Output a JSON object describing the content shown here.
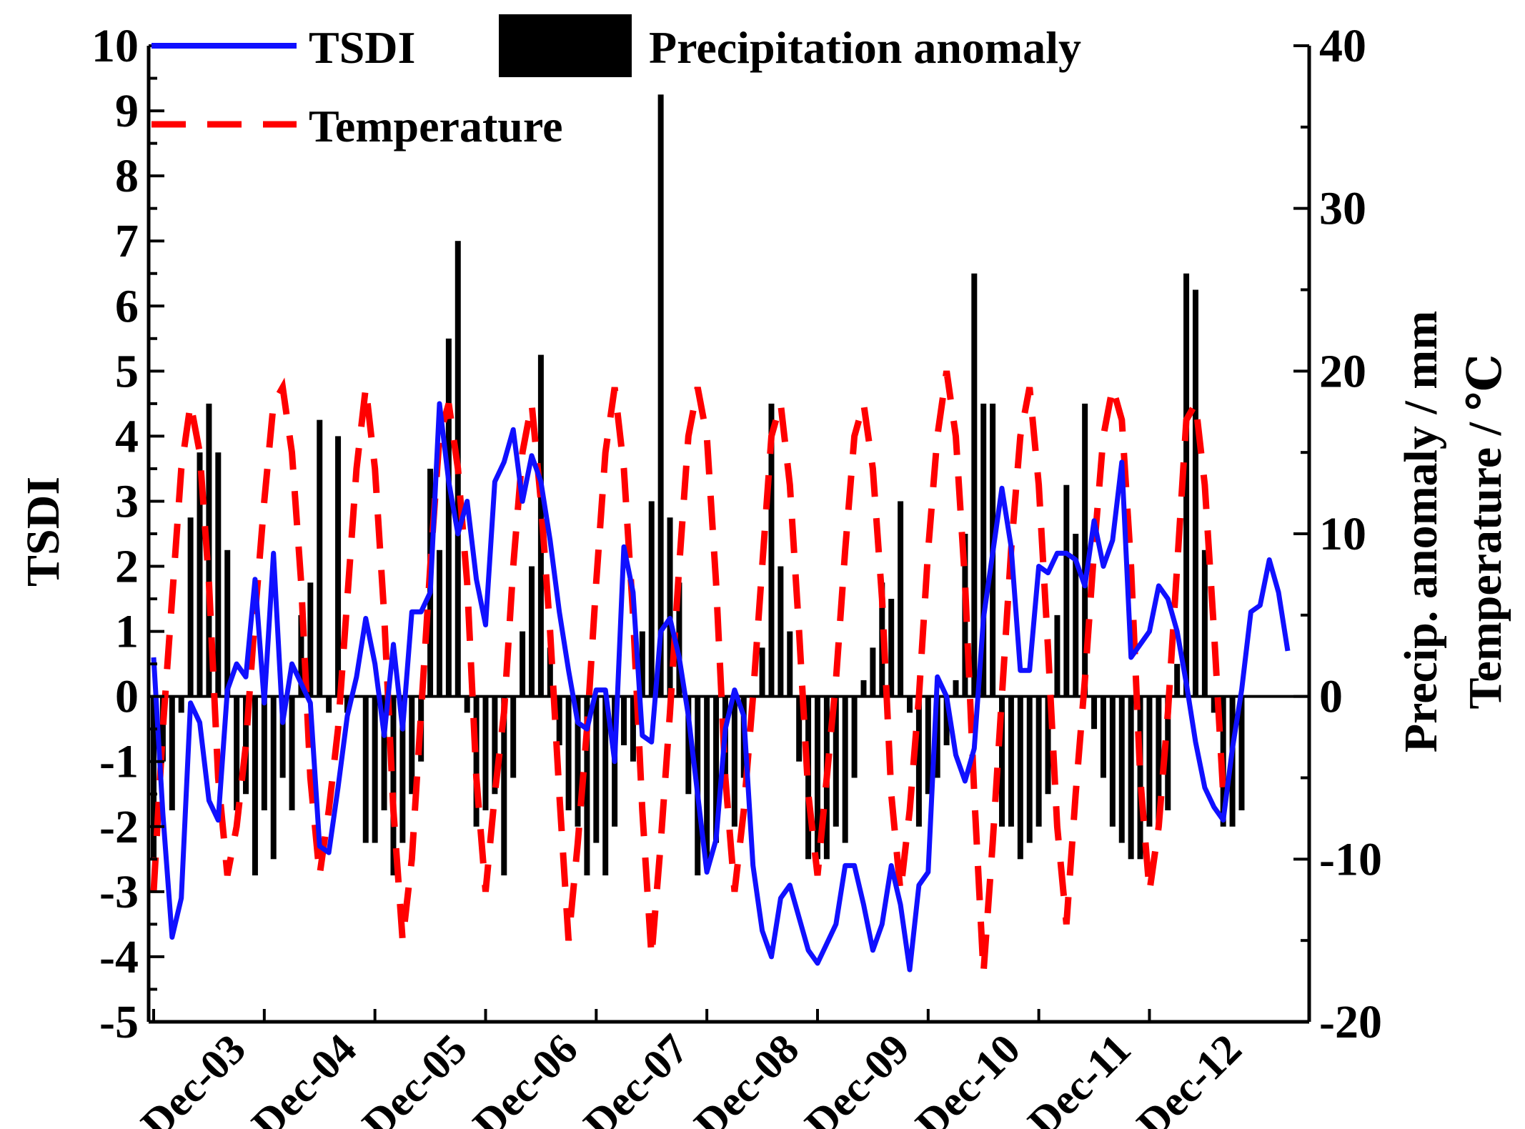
{
  "chart_data": {
    "type": "bar+line",
    "title": "",
    "xlabel": "",
    "ylabel_left": "TSDI",
    "ylabel_right_1": "Precip. anomaly / mm",
    "ylabel_right_2": "Temperature / ℃",
    "ylim_left": [
      -5,
      10
    ],
    "ylim_right": [
      -20,
      40
    ],
    "yticks_left": [
      "10",
      "9",
      "8",
      "7",
      "6",
      "5",
      "4",
      "3",
      "2",
      "1",
      "0",
      "-1",
      "-2",
      "-3",
      "-4",
      "-5"
    ],
    "yticks_right": [
      "40",
      "30",
      "20",
      "10",
      "0",
      "-10",
      "-20"
    ],
    "x_tick_labels": [
      "Dec-03",
      "Dec-04",
      "Dec-05",
      "Dec-06",
      "Dec-07",
      "Dec-08",
      "Dec-09",
      "Dec-10",
      "Dec-11",
      "Dec-12"
    ],
    "legend": {
      "tsdi": "TSDI",
      "precip": "Precipitation anomaly",
      "temperature": "Temperature"
    },
    "colors": {
      "tsdi": "#1010ff",
      "temperature": "#ff0000",
      "precip": "#000000"
    },
    "months_start": "Dec-03",
    "series": [
      {
        "name": "TSDI",
        "axis": "left",
        "values": [
          0.6,
          -1.8,
          -3.7,
          -3.1,
          -0.1,
          -0.4,
          -1.6,
          -1.9,
          0.1,
          0.5,
          0.3,
          1.8,
          -0.1,
          2.2,
          -0.4,
          0.5,
          0.2,
          -0.1,
          -2.3,
          -2.4,
          -1.4,
          -0.3,
          0.3,
          1.2,
          0.5,
          -0.6,
          0.8,
          -0.5,
          1.3,
          1.3,
          1.6,
          4.5,
          3.3,
          2.5,
          3.0,
          1.8,
          1.1,
          3.3,
          3.6,
          4.1,
          3.0,
          3.7,
          3.3,
          2.4,
          1.3,
          0.4,
          -0.4,
          -0.5,
          0.1,
          0.1,
          -1.0,
          2.3,
          1.6,
          -0.6,
          -0.7,
          1.0,
          1.2,
          0.6,
          -0.3,
          -1.5,
          -2.7,
          -2.2,
          -0.5,
          0.1,
          -0.3,
          -2.6,
          -3.6,
          -4.0,
          -3.1,
          -2.9,
          -3.4,
          -3.9,
          -4.1,
          -3.8,
          -3.5,
          -2.6,
          -2.6,
          -3.2,
          -3.9,
          -3.5,
          -2.6,
          -3.2,
          -4.2,
          -2.9,
          -2.7,
          0.3,
          0.0,
          -0.9,
          -1.3,
          -0.8,
          1.2,
          2.2,
          3.2,
          2.3,
          0.4,
          0.4,
          2.0,
          1.9,
          2.2,
          2.2,
          2.1,
          1.7,
          2.7,
          2.0,
          2.4,
          3.6,
          0.6,
          0.8,
          1.0,
          1.7,
          1.5,
          1.0,
          0.2,
          -0.7,
          -1.4,
          -1.7,
          -1.9,
          -0.8,
          0.1,
          1.3,
          1.4,
          2.1,
          1.6,
          0.7
        ]
      },
      {
        "name": "Precipitation anomaly",
        "axis": "right",
        "values": [
          -10,
          -4,
          -7,
          -1,
          11,
          15,
          18,
          15,
          9,
          -7,
          -6,
          -11,
          -7,
          -10,
          -5,
          -7,
          5,
          7,
          17,
          -1,
          16,
          -1,
          0,
          -9,
          -9,
          -7,
          -11,
          -9,
          -6,
          -4,
          14,
          9,
          22,
          28,
          -1,
          -8,
          -7,
          -6,
          -11,
          -5,
          4,
          8,
          21,
          3,
          -3,
          -7,
          -8,
          -11,
          -9,
          -11,
          -8,
          -3,
          -4,
          4,
          12,
          37,
          11,
          7,
          -6,
          -11,
          -10,
          -9,
          -5,
          -8,
          -5,
          0,
          3,
          18,
          8,
          4,
          -4,
          -10,
          -10,
          -10,
          -8,
          -9,
          -5,
          1,
          3,
          7,
          6,
          12,
          -1,
          -8,
          -6,
          -5,
          -3,
          1,
          10,
          26,
          18,
          18,
          -8,
          -8,
          -10,
          -9,
          -8,
          -6,
          5,
          13,
          10,
          18,
          -2,
          -5,
          -8,
          -9,
          -10,
          -10,
          -8,
          -8,
          -7,
          2,
          26,
          25,
          9,
          -1,
          -8,
          -8,
          -7
        ]
      },
      {
        "name": "Temperature",
        "axis": "right",
        "values": [
          -12,
          -2,
          6,
          14,
          18,
          15,
          7,
          -5,
          -11,
          -8,
          -3,
          5,
          12,
          18,
          19,
          15,
          7,
          -5,
          -11,
          -7,
          -2,
          6,
          14,
          19,
          14,
          5,
          -7,
          -15,
          -10,
          -1,
          8,
          16,
          18,
          14,
          7,
          -5,
          -12,
          -6,
          -1,
          8,
          15,
          18,
          12,
          4,
          -6,
          -15,
          -9,
          -2,
          7,
          15,
          19,
          14,
          5,
          -7,
          -16,
          -9,
          -1,
          8,
          16,
          19,
          16,
          7,
          -5,
          -12,
          -7,
          0,
          8,
          16,
          18,
          13,
          4,
          -6,
          -11,
          -5,
          1,
          9,
          16,
          18,
          14,
          6,
          -6,
          -12,
          -7,
          0,
          9,
          16,
          20,
          16,
          7,
          -6,
          -17,
          -9,
          0,
          9,
          16,
          19,
          13,
          3,
          -8,
          -14,
          -6,
          1,
          9,
          16,
          19,
          17,
          8,
          -5,
          -12,
          -8,
          -1,
          8,
          17,
          18,
          13,
          4,
          -6
        ]
      }
    ]
  }
}
